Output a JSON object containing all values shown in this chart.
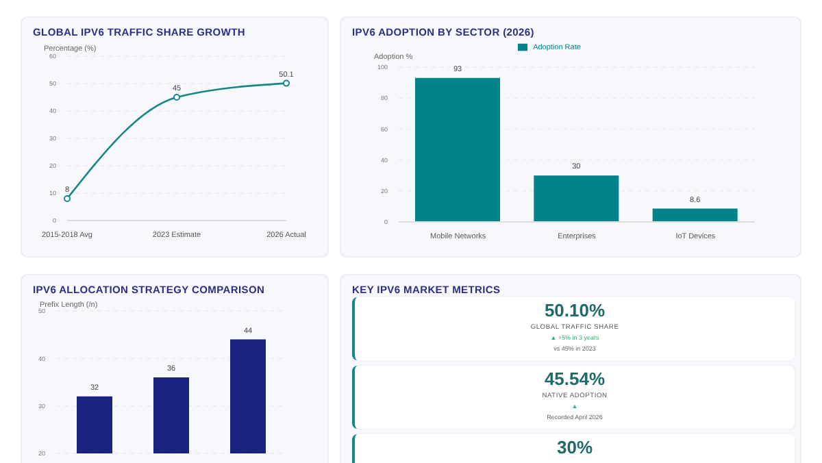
{
  "chart_data": [
    {
      "type": "line",
      "title": "GLOBAL IPV6 TRAFFIC SHARE GROWTH",
      "ylabel": "Percentage (%)",
      "categories": [
        "2015-2018 Avg",
        "2023 Estimate",
        "2026 Actual"
      ],
      "values": [
        8,
        45,
        50.1
      ],
      "color": "#17858a",
      "ylim": [
        0,
        60
      ],
      "yticks": [
        0,
        10,
        20,
        30,
        40,
        50,
        60
      ],
      "grid": "y",
      "marker": "circle",
      "line_style": "solid",
      "data_labels": true
    },
    {
      "type": "bar",
      "title": "IPV6 ADOPTION BY SECTOR (2026)",
      "ylabel": "Adoption %",
      "categories": [
        "Mobile Networks",
        "Enterprises",
        "IoT Devices"
      ],
      "series": [
        {
          "name": "Adoption Rate",
          "color": "#00838a",
          "values": [
            93,
            30,
            8.6
          ]
        }
      ],
      "ylim": [
        0,
        100
      ],
      "yticks": [
        0,
        20,
        40,
        60,
        80,
        100
      ],
      "grid": "y",
      "legend": "top",
      "data_labels": true
    },
    {
      "type": "bar",
      "title": "IPV6 ALLOCATION STRATEGY COMPARISON",
      "ylabel": "Prefix Length (/n)",
      "categories": [
        null,
        null,
        null
      ],
      "values": [
        32,
        36,
        44
      ],
      "color": "#1a237e",
      "ylim": [
        20,
        50
      ],
      "yticks": [
        20,
        30,
        40,
        50
      ],
      "grid": "y",
      "tick_labels": "y",
      "data_labels": true
    },
    {
      "type": "other",
      "title": "KEY IPV6 MARKET METRICS",
      "annotations": [
        "50.10%",
        "GLOBAL TRAFFIC SHARE",
        "▲ +5% in 3 years",
        "vs 45% in 2023",
        "45.54%",
        "NATIVE ADOPTION",
        "▲",
        "Recorded April 2026",
        "30%"
      ]
    }
  ]
}
